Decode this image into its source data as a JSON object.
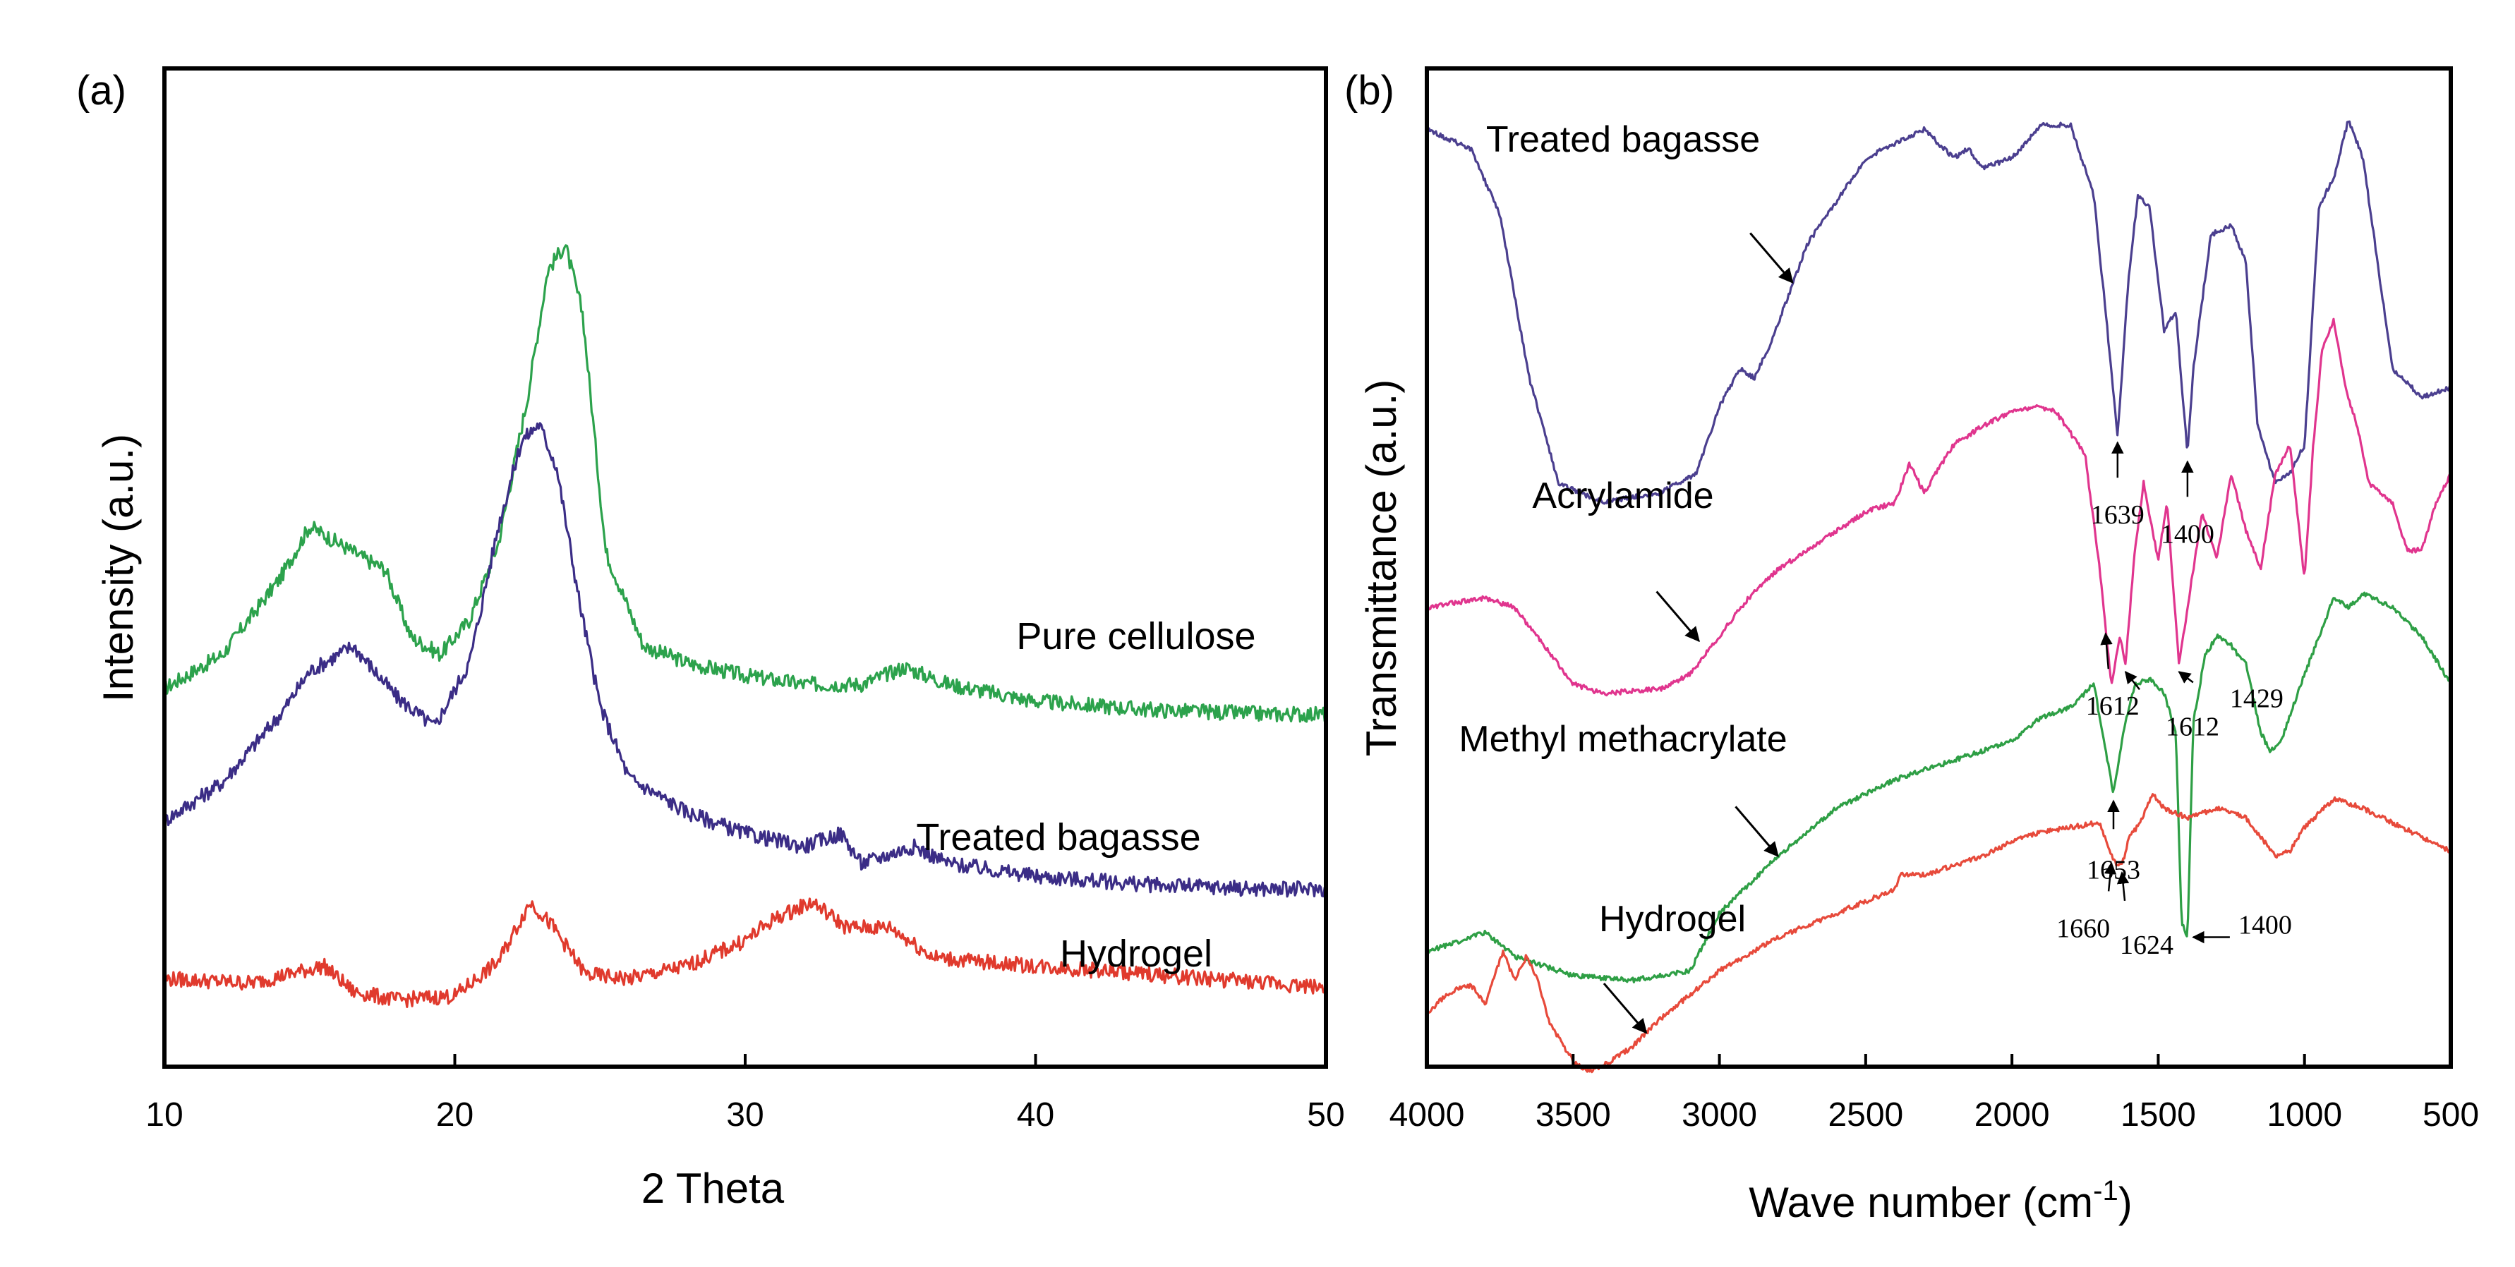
{
  "chart_data": [
    {
      "type": "line",
      "panel_label": "(a)",
      "title": "",
      "xlabel": "2 Theta",
      "ylabel": "Intensity (a.u.)",
      "xlim": [
        10,
        50
      ],
      "ylim": [
        0,
        10
      ],
      "x_ticks": [
        10,
        20,
        30,
        40,
        50
      ],
      "yticks_shown": false,
      "grid": false,
      "legend": "inline labels at right",
      "series": [
        {
          "name": "Pure cellulose",
          "color": "#2ca24c",
          "x": [
            10,
            12,
            14,
            15,
            16,
            17,
            17.6,
            18.5,
            19.5,
            20.5,
            21.5,
            22.5,
            23.2,
            23.8,
            24.4,
            25.2,
            26.5,
            28,
            30,
            32,
            34,
            35.5,
            37,
            40,
            44,
            48,
            50
          ],
          "y": [
            4.0,
            4.4,
            5.3,
            5.9,
            5.7,
            5.5,
            5.4,
            4.6,
            4.4,
            4.8,
            5.7,
            7.4,
            8.9,
            9.2,
            8.4,
            5.6,
            4.5,
            4.3,
            4.15,
            4.05,
            4.05,
            4.25,
            4.05,
            3.85,
            3.75,
            3.7,
            3.7
          ]
        },
        {
          "name": "Treated bagasse",
          "color": "#3b2d86",
          "x": [
            10,
            12,
            14,
            15,
            16.5,
            18,
            19.3,
            20.5,
            21.5,
            22.3,
            22.9,
            23.5,
            24.3,
            25,
            26,
            28,
            30,
            32,
            33.3,
            34,
            35.8,
            37,
            40,
            44,
            48,
            50
          ],
          "y": [
            2.45,
            2.9,
            3.7,
            4.2,
            4.5,
            3.9,
            3.55,
            4.3,
            5.9,
            6.9,
            7.1,
            6.6,
            5.0,
            3.8,
            2.95,
            2.55,
            2.3,
            2.15,
            2.3,
            1.95,
            2.15,
            1.95,
            1.8,
            1.7,
            1.65,
            1.65
          ]
        },
        {
          "name": "Hydrogel",
          "color": "#e03a2d",
          "x": [
            10,
            13,
            15.5,
            16.5,
            18,
            20,
            21.5,
            22.6,
            23.4,
            24.5,
            26,
            28,
            30,
            31,
            32.3,
            33.5,
            35,
            36.5,
            38,
            40,
            44,
            48,
            50
          ],
          "y": [
            0.6,
            0.55,
            0.75,
            0.45,
            0.35,
            0.4,
            0.8,
            1.5,
            1.2,
            0.65,
            0.6,
            0.75,
            1.05,
            1.3,
            1.5,
            1.2,
            1.2,
            0.85,
            0.8,
            0.75,
            0.65,
            0.55,
            0.5
          ]
        }
      ]
    },
    {
      "type": "line",
      "panel_label": "(b)",
      "title": "",
      "xlabel_main": "Wave number (cm",
      "xlabel_sup": "-1",
      "xlabel_close": ")",
      "ylabel": "Transmittance (a.u.)",
      "xlim": [
        4000,
        500
      ],
      "x_reversed": true,
      "ylim": [
        0,
        10
      ],
      "x_ticks": [
        4000,
        3500,
        3000,
        2500,
        2000,
        1500,
        1000,
        500
      ],
      "yticks_shown": false,
      "grid": false,
      "legend": "inline labels with arrows",
      "series": [
        {
          "name": "Treated bagasse",
          "color": "#4b3f8f",
          "x": [
            4000,
            3850,
            3750,
            3650,
            3550,
            3400,
            3200,
            3080,
            3000,
            2930,
            2880,
            2820,
            2700,
            2500,
            2300,
            2200,
            2150,
            2100,
            2000,
            1900,
            1800,
            1720,
            1680,
            1639,
            1600,
            1570,
            1530,
            1480,
            1440,
            1400,
            1380,
            1320,
            1250,
            1200,
            1160,
            1100,
            1050,
            1000,
            950,
            900,
            850,
            800,
            700,
            600,
            500
          ],
          "y": [
            9.9,
            9.7,
            9.0,
            7.3,
            6.2,
            6.0,
            6.1,
            6.3,
            7.0,
            7.4,
            7.3,
            7.7,
            8.7,
            9.6,
            9.9,
            9.6,
            9.7,
            9.5,
            9.6,
            9.95,
            9.95,
            9.2,
            8.0,
            6.7,
            8.4,
            9.2,
            9.1,
            7.8,
            8.0,
            6.5,
            7.4,
            8.8,
            8.9,
            8.5,
            6.8,
            6.2,
            6.3,
            6.6,
            9.1,
            9.4,
            10.0,
            9.6,
            7.4,
            7.1,
            7.2
          ]
        },
        {
          "name": "Acrylamide",
          "color": "#e0358e",
          "x": [
            4000,
            3800,
            3700,
            3600,
            3500,
            3400,
            3200,
            3100,
            3000,
            2900,
            2800,
            2700,
            2500,
            2400,
            2350,
            2300,
            2200,
            2100,
            2000,
            1920,
            1850,
            1750,
            1700,
            1660,
            1630,
            1612,
            1580,
            1550,
            1500,
            1470,
            1429,
            1400,
            1350,
            1300,
            1250,
            1200,
            1150,
            1100,
            1050,
            1000,
            970,
            940,
            900,
            860,
            820,
            780,
            700,
            650,
            600,
            550,
            500
          ],
          "y": [
            4.9,
            5.0,
            4.9,
            4.5,
            4.1,
            4.0,
            4.05,
            4.2,
            4.6,
            5.0,
            5.3,
            5.5,
            5.9,
            6.0,
            6.4,
            6.1,
            6.6,
            6.8,
            6.95,
            7.0,
            6.95,
            6.5,
            5.3,
            4.1,
            4.6,
            4.3,
            5.5,
            6.2,
            5.4,
            6.0,
            4.3,
            4.9,
            5.9,
            5.4,
            6.3,
            5.7,
            5.3,
            6.3,
            6.6,
            5.2,
            6.6,
            7.6,
            7.9,
            7.2,
            6.8,
            6.2,
            6.0,
            5.5,
            5.5,
            6.0,
            6.3
          ]
        },
        {
          "name": "Methyl methacrylate",
          "color": "#2e9f45",
          "x": [
            4000,
            3800,
            3700,
            3500,
            3300,
            3100,
            3050,
            3000,
            2800,
            2600,
            2400,
            2200,
            2000,
            1900,
            1800,
            1720,
            1680,
            1653,
            1620,
            1580,
            1530,
            1480,
            1440,
            1420,
            1400,
            1380,
            1340,
            1300,
            1250,
            1200,
            1150,
            1120,
            1080,
            1000,
            950,
            900,
            850,
            800,
            700,
            600,
            500
          ],
          "y": [
            1.3,
            1.5,
            1.25,
            1.05,
            1.0,
            1.1,
            1.4,
            1.7,
            2.3,
            2.8,
            3.1,
            3.3,
            3.5,
            3.75,
            3.85,
            4.1,
            3.4,
            2.95,
            3.6,
            4.1,
            4.15,
            4.0,
            3.6,
            1.6,
            1.45,
            3.7,
            4.4,
            4.6,
            4.5,
            4.3,
            3.6,
            3.4,
            3.5,
            4.2,
            4.6,
            5.0,
            4.9,
            5.05,
            4.9,
            4.6,
            4.1
          ]
        },
        {
          "name": "Hydrogel",
          "color": "#e74a3b",
          "x": [
            4000,
            3950,
            3900,
            3850,
            3800,
            3740,
            3700,
            3660,
            3620,
            3580,
            3500,
            3450,
            3400,
            3300,
            3200,
            3100,
            3000,
            2800,
            2600,
            2400,
            2380,
            2300,
            2100,
            2000,
            1900,
            1800,
            1700,
            1660,
            1640,
            1624,
            1600,
            1560,
            1520,
            1480,
            1400,
            1300,
            1200,
            1150,
            1100,
            1050,
            1000,
            900,
            800,
            700,
            600,
            500
          ],
          "y": [
            0.65,
            0.8,
            0.9,
            0.95,
            0.75,
            1.3,
            1.0,
            1.25,
            1.0,
            0.55,
            0.15,
            0.05,
            0.1,
            0.3,
            0.6,
            0.85,
            1.1,
            1.45,
            1.7,
            1.95,
            2.1,
            2.1,
            2.3,
            2.45,
            2.55,
            2.6,
            2.65,
            2.3,
            2.2,
            2.2,
            2.5,
            2.65,
            2.95,
            2.8,
            2.7,
            2.8,
            2.7,
            2.5,
            2.3,
            2.35,
            2.6,
            2.9,
            2.8,
            2.65,
            2.5,
            2.35
          ]
        }
      ],
      "series_labels": [
        {
          "text": "Treated bagasse",
          "points_to": [
            2750,
            8.3
          ]
        },
        {
          "text": "Acrylamide",
          "points_to": [
            3070,
            4.55
          ]
        },
        {
          "text": "Methyl methacrylate",
          "points_to": [
            2800,
            2.3
          ]
        },
        {
          "text": "Hydrogel",
          "points_to": [
            3250,
            0.45
          ]
        }
      ],
      "annotations": [
        {
          "text": "1639",
          "series": 0,
          "x": 1639
        },
        {
          "text": "1400",
          "series": 0,
          "x": 1400
        },
        {
          "text": "1612",
          "series": 1,
          "x": 1680
        },
        {
          "text": "1612",
          "series": 1,
          "x": 1612
        },
        {
          "text": "1429",
          "series": 1,
          "x": 1429
        },
        {
          "text": "1653",
          "series": 2,
          "x": 1653
        },
        {
          "text": "1400",
          "series": 2,
          "x": 1400
        },
        {
          "text": "1660",
          "series": 3,
          "x": 1660
        },
        {
          "text": "1624",
          "series": 3,
          "x": 1624
        }
      ]
    }
  ]
}
